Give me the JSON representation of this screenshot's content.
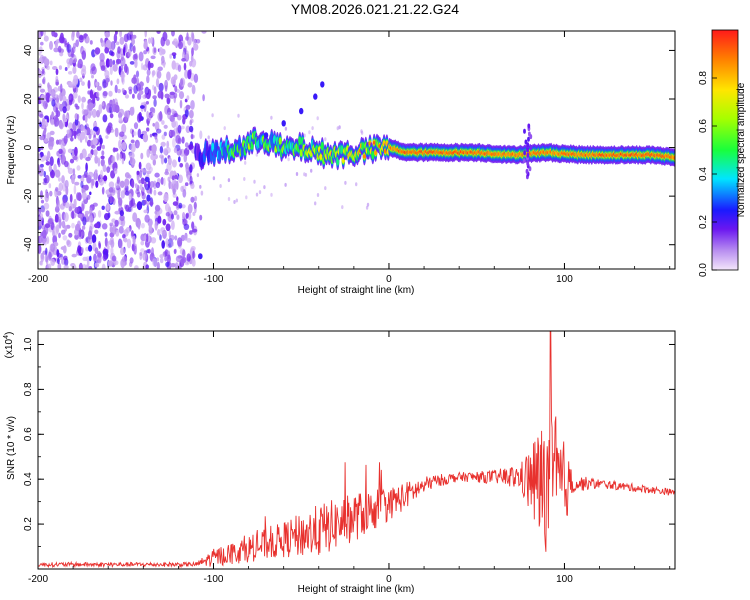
{
  "title": "YM08.2026.021.21.22.G24",
  "chart_data": [
    {
      "type": "heatmap",
      "name": "spectrogram",
      "xlabel": "Height of straight line (km)",
      "ylabel": "Frequency (Hz)",
      "xlim": [
        -200,
        163
      ],
      "ylim": [
        -50,
        48
      ],
      "xticks": [
        -200,
        -100,
        0,
        100
      ],
      "yticks": [
        40,
        20,
        0,
        -20,
        -40
      ],
      "ytick_labels": [
        "40",
        "20",
        "0",
        "-20",
        "-40"
      ],
      "xtick_labels": [
        "-200",
        "-100",
        "0",
        "100"
      ],
      "noise_region_x": [
        -200,
        -110
      ],
      "signal_track": [
        {
          "x": -110,
          "f": -4,
          "a": 0.2
        },
        {
          "x": -100,
          "f": -2,
          "a": 0.4
        },
        {
          "x": -90,
          "f": -1,
          "a": 0.5
        },
        {
          "x": -80,
          "f": 1,
          "a": 0.6
        },
        {
          "x": -72,
          "f": 4,
          "a": 0.55
        },
        {
          "x": -60,
          "f": -1,
          "a": 0.6
        },
        {
          "x": -50,
          "f": 0,
          "a": 0.65
        },
        {
          "x": -40,
          "f": -2,
          "a": 0.7
        },
        {
          "x": -30,
          "f": -3,
          "a": 0.75
        },
        {
          "x": -20,
          "f": -2,
          "a": 0.8
        },
        {
          "x": -10,
          "f": -1,
          "a": 0.85
        },
        {
          "x": 0,
          "f": 0,
          "a": 0.9
        },
        {
          "x": 10,
          "f": -2,
          "a": 0.95
        },
        {
          "x": 30,
          "f": -2,
          "a": 0.95
        },
        {
          "x": 50,
          "f": -2,
          "a": 0.93
        },
        {
          "x": 70,
          "f": -3,
          "a": 0.9
        },
        {
          "x": 90,
          "f": -2,
          "a": 0.9
        },
        {
          "x": 110,
          "f": -3,
          "a": 0.92
        },
        {
          "x": 130,
          "f": -3,
          "a": 0.95
        },
        {
          "x": 150,
          "f": -3,
          "a": 0.95
        },
        {
          "x": 163,
          "f": -4,
          "a": 0.9
        }
      ],
      "branch_track": [
        {
          "x": -70,
          "f": 5
        },
        {
          "x": -60,
          "f": 10
        },
        {
          "x": -50,
          "f": 15
        },
        {
          "x": -42,
          "f": 21
        },
        {
          "x": -38,
          "f": 26
        }
      ]
    },
    {
      "type": "colorbar",
      "name": "colorbar",
      "label": "Normalized spectral amplitude",
      "ylim": [
        0,
        1
      ],
      "ticks": [
        0.0,
        0.2,
        0.4,
        0.6,
        0.8
      ],
      "tick_labels": [
        "0.0",
        "0.2",
        "0.4",
        "0.6",
        "0.8"
      ]
    },
    {
      "type": "line",
      "name": "snr",
      "xlabel": "Height of straight line (km)",
      "ylabel": "SNR (10 * v/v)",
      "scale_label": "(x10",
      "scale_exp": "4",
      "scale_close": ")",
      "xlim": [
        -200,
        163
      ],
      "ylim": [
        0,
        1.06
      ],
      "xticks": [
        -200,
        -100,
        0,
        100
      ],
      "xtick_labels": [
        "-200",
        "-100",
        "0",
        "100"
      ],
      "yticks": [
        0.2,
        0.4,
        0.6,
        0.8,
        1.0
      ],
      "ytick_labels": [
        "0.2",
        "0.4",
        "0.6",
        "0.8",
        "1.0"
      ],
      "color": "#e8312e",
      "envelope": [
        {
          "x": -200,
          "y": 0.02,
          "n": 0.01
        },
        {
          "x": -110,
          "y": 0.02,
          "n": 0.01
        },
        {
          "x": -100,
          "y": 0.05,
          "n": 0.04
        },
        {
          "x": -80,
          "y": 0.09,
          "n": 0.06
        },
        {
          "x": -60,
          "y": 0.13,
          "n": 0.08
        },
        {
          "x": -40,
          "y": 0.17,
          "n": 0.12
        },
        {
          "x": -20,
          "y": 0.23,
          "n": 0.11
        },
        {
          "x": 0,
          "y": 0.29,
          "n": 0.08
        },
        {
          "x": 10,
          "y": 0.33,
          "n": 0.06
        },
        {
          "x": 25,
          "y": 0.39,
          "n": 0.03
        },
        {
          "x": 40,
          "y": 0.41,
          "n": 0.02
        },
        {
          "x": 60,
          "y": 0.41,
          "n": 0.03
        },
        {
          "x": 75,
          "y": 0.41,
          "n": 0.06
        },
        {
          "x": 85,
          "y": 0.38,
          "n": 0.25
        },
        {
          "x": 95,
          "y": 0.36,
          "n": 0.35
        },
        {
          "x": 105,
          "y": 0.38,
          "n": 0.04
        },
        {
          "x": 120,
          "y": 0.38,
          "n": 0.02
        },
        {
          "x": 163,
          "y": 0.34,
          "n": 0.015
        }
      ],
      "peak": {
        "x": 92,
        "y": 1.06
      }
    }
  ]
}
